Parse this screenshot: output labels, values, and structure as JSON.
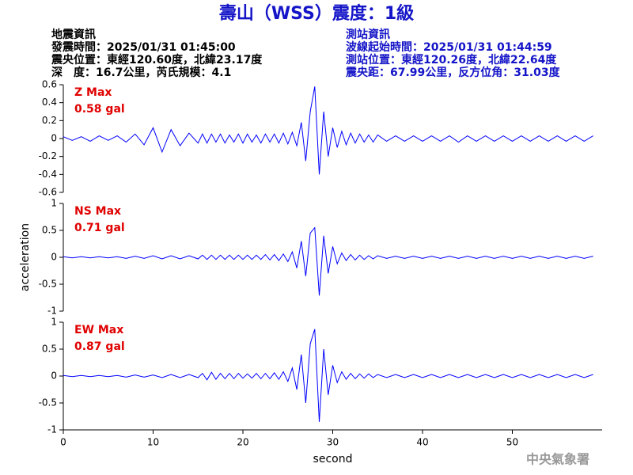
{
  "header": {
    "title": "壽山（WSS）震度：1級",
    "left": [
      "地震資訊",
      "發震時間：2025/01/31 01:45:00",
      "震央位置：東經120.60度，北緯23.17度",
      "深　度：16.7公里，芮氏規模：4.1"
    ],
    "right": [
      "測站資訊",
      "波線起始時間：2025/01/31 01:44:59",
      "測站位置：東經120.26度，北緯22.64度",
      "震央距：67.99公里，反方位角：31.03度"
    ]
  },
  "footer": "中央氣象署",
  "chart_data": [
    {
      "type": "line",
      "max_label": "Z Max",
      "max_value_label": "0.58 gal",
      "color": "#0000ff",
      "x": [
        0,
        1,
        2,
        3,
        4,
        5,
        6,
        7,
        8,
        9,
        10,
        11,
        12,
        13,
        14,
        15,
        15.5,
        16,
        16.5,
        17,
        17.5,
        18,
        18.5,
        19,
        19.5,
        20,
        20.5,
        21,
        21.5,
        22,
        22.5,
        23,
        23.5,
        24,
        24.5,
        25,
        25.5,
        26,
        26.5,
        27,
        27.5,
        28,
        28.5,
        29,
        29.5,
        30,
        30.5,
        31,
        31.5,
        32,
        32.5,
        33,
        33.5,
        34,
        34.5,
        35,
        36,
        37,
        38,
        39,
        40,
        41,
        42,
        43,
        44,
        45,
        46,
        47,
        48,
        49,
        50,
        51,
        52,
        53,
        54,
        55,
        56,
        57,
        58,
        59
      ],
      "values": [
        0.02,
        -0.02,
        0.02,
        -0.03,
        0.03,
        -0.02,
        0.03,
        -0.04,
        0.05,
        -0.07,
        0.12,
        -0.15,
        0.1,
        -0.08,
        0.06,
        -0.05,
        0.05,
        -0.05,
        0.05,
        -0.04,
        0.05,
        -0.05,
        0.04,
        -0.04,
        0.05,
        -0.05,
        0.05,
        -0.04,
        0.04,
        -0.05,
        0.05,
        -0.04,
        0.05,
        -0.05,
        0.06,
        -0.06,
        0.07,
        -0.08,
        0.18,
        -0.25,
        0.3,
        0.58,
        -0.4,
        0.3,
        -0.2,
        0.12,
        -0.1,
        0.08,
        -0.07,
        0.06,
        -0.05,
        0.05,
        -0.04,
        0.04,
        -0.04,
        0.04,
        -0.03,
        0.03,
        -0.03,
        0.03,
        -0.03,
        0.03,
        -0.03,
        0.03,
        -0.04,
        0.03,
        -0.03,
        0.03,
        -0.03,
        0.03,
        -0.03,
        0.03,
        -0.03,
        0.03,
        -0.03,
        0.03,
        -0.03,
        0.03,
        -0.03,
        0.03
      ],
      "ylim": [
        -0.6,
        0.6
      ],
      "yticks": [
        0.6,
        0.4,
        0.2,
        0,
        -0.2,
        -0.4,
        -0.6
      ]
    },
    {
      "type": "line",
      "max_label": "NS Max",
      "max_value_label": "0.71 gal",
      "color": "#0000ff",
      "y_label": "acceleration",
      "x": [
        0,
        1,
        2,
        3,
        4,
        5,
        6,
        7,
        8,
        9,
        10,
        11,
        12,
        13,
        14,
        15,
        15.5,
        16,
        16.5,
        17,
        17.5,
        18,
        18.5,
        19,
        19.5,
        20,
        20.5,
        21,
        21.5,
        22,
        22.5,
        23,
        23.5,
        24,
        24.5,
        25,
        25.5,
        26,
        26.5,
        27,
        27.5,
        28,
        28.5,
        29,
        29.5,
        30,
        30.5,
        31,
        31.5,
        32,
        32.5,
        33,
        33.5,
        34,
        34.5,
        35,
        36,
        37,
        38,
        39,
        40,
        41,
        42,
        43,
        44,
        45,
        46,
        47,
        48,
        49,
        50,
        51,
        52,
        53,
        54,
        55,
        56,
        57,
        58,
        59
      ],
      "values": [
        0.01,
        -0.01,
        0.01,
        -0.01,
        0.01,
        -0.01,
        0.01,
        -0.02,
        0.02,
        -0.02,
        0.03,
        -0.03,
        0.03,
        -0.03,
        0.03,
        -0.03,
        0.04,
        -0.04,
        0.04,
        -0.04,
        0.04,
        -0.04,
        0.04,
        -0.04,
        0.04,
        -0.04,
        0.04,
        -0.04,
        0.04,
        -0.04,
        0.05,
        -0.05,
        0.05,
        -0.06,
        0.06,
        -0.08,
        0.1,
        -0.2,
        0.3,
        -0.35,
        0.45,
        0.55,
        -0.71,
        0.4,
        -0.3,
        0.2,
        -0.12,
        0.08,
        -0.06,
        0.05,
        -0.05,
        0.04,
        -0.04,
        0.03,
        -0.03,
        0.03,
        -0.02,
        0.02,
        -0.02,
        0.02,
        -0.02,
        0.02,
        -0.02,
        0.02,
        -0.02,
        0.02,
        -0.02,
        0.02,
        -0.02,
        0.02,
        -0.02,
        0.02,
        -0.02,
        0.02,
        -0.02,
        0.02,
        -0.02,
        0.02,
        -0.02,
        0.02
      ],
      "ylim": [
        -1,
        1
      ],
      "yticks": [
        1,
        0.5,
        0,
        -0.5,
        -1
      ]
    },
    {
      "type": "line",
      "max_label": "EW Max",
      "max_value_label": "0.87 gal",
      "color": "#0000ff",
      "x_label": "second",
      "x": [
        0,
        1,
        2,
        3,
        4,
        5,
        6,
        7,
        8,
        9,
        10,
        11,
        12,
        13,
        14,
        15,
        15.5,
        16,
        16.5,
        17,
        17.5,
        18,
        18.5,
        19,
        19.5,
        20,
        20.5,
        21,
        21.5,
        22,
        22.5,
        23,
        23.5,
        24,
        24.5,
        25,
        25.5,
        26,
        26.5,
        27,
        27.5,
        28,
        28.5,
        29,
        29.5,
        30,
        30.5,
        31,
        31.5,
        32,
        32.5,
        33,
        33.5,
        34,
        34.5,
        35,
        36,
        37,
        38,
        39,
        40,
        41,
        42,
        43,
        44,
        45,
        46,
        47,
        48,
        49,
        50,
        51,
        52,
        53,
        54,
        55,
        56,
        57,
        58,
        59
      ],
      "values": [
        0.01,
        -0.01,
        0.01,
        -0.01,
        0.01,
        -0.01,
        0.01,
        -0.02,
        0.02,
        -0.02,
        0.02,
        -0.03,
        0.03,
        -0.03,
        0.03,
        -0.03,
        0.05,
        -0.07,
        0.07,
        -0.06,
        0.05,
        -0.05,
        0.05,
        -0.05,
        0.05,
        -0.04,
        0.04,
        -0.04,
        0.05,
        -0.05,
        0.05,
        -0.05,
        0.06,
        -0.06,
        0.08,
        -0.1,
        0.15,
        -0.25,
        0.4,
        -0.5,
        0.6,
        0.87,
        -0.85,
        0.5,
        -0.35,
        0.2,
        -0.12,
        0.08,
        -0.06,
        0.05,
        -0.05,
        0.04,
        -0.04,
        0.04,
        -0.03,
        0.03,
        -0.03,
        0.03,
        -0.03,
        0.03,
        -0.03,
        0.03,
        -0.03,
        0.03,
        -0.03,
        0.03,
        -0.03,
        0.03,
        -0.03,
        0.03,
        -0.03,
        0.03,
        -0.03,
        0.03,
        -0.03,
        0.03,
        -0.03,
        0.03,
        -0.03,
        0.03
      ],
      "ylim": [
        -1,
        1
      ],
      "yticks": [
        1,
        0.5,
        0,
        -0.5,
        -1
      ],
      "xlim": [
        0,
        60
      ],
      "xticks": [
        0,
        10,
        20,
        30,
        40,
        50
      ]
    }
  ]
}
